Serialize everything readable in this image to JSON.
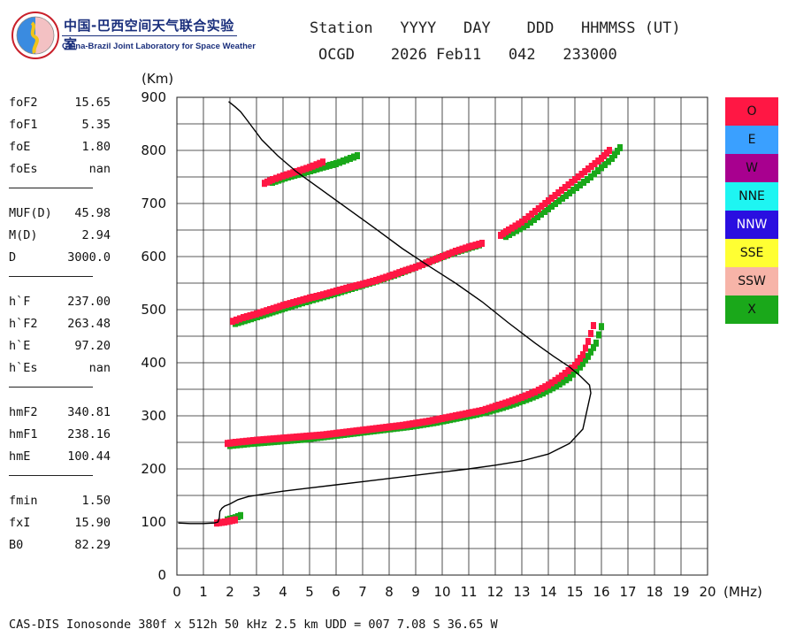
{
  "header": {
    "logo": {
      "cn": "中国-巴西空间天气联合实验室",
      "en": "China-Brazil Joint Laboratory for Space Weather"
    },
    "columns_label": "Station   YYYY   DAY    DDD   HHMMSS (UT)",
    "values_line": "OCGD    2026 Feb11   042   233000"
  },
  "params": [
    {
      "label": "foF2",
      "value": "15.65"
    },
    {
      "label": "foF1",
      "value": "5.35"
    },
    {
      "label": "foE",
      "value": "1.80"
    },
    {
      "label": "foEs",
      "value": "nan"
    },
    {
      "sep": true
    },
    {
      "label": "MUF(D)",
      "value": "45.98"
    },
    {
      "label": "M(D)",
      "value": "2.94"
    },
    {
      "label": "D",
      "value": "3000.0"
    },
    {
      "sep": true
    },
    {
      "label": "h`F",
      "value": "237.00"
    },
    {
      "label": "h`F2",
      "value": "263.48"
    },
    {
      "label": "h`E",
      "value": "97.20"
    },
    {
      "label": "h`Es",
      "value": "nan"
    },
    {
      "sep": true
    },
    {
      "label": "hmF2",
      "value": "340.81"
    },
    {
      "label": "hmF1",
      "value": "238.16"
    },
    {
      "label": "hmE",
      "value": "100.44"
    },
    {
      "sep": true
    },
    {
      "label": "fmin",
      "value": "1.50"
    },
    {
      "label": "fxI",
      "value": "15.90"
    },
    {
      "label": "B0",
      "value": "82.29"
    }
  ],
  "legend": [
    {
      "label": "O",
      "color": "#ff1744"
    },
    {
      "label": "E",
      "color": "#3aa0ff"
    },
    {
      "label": "W",
      "color": "#a8008f"
    },
    {
      "label": "NNE",
      "color": "#1ef5f2"
    },
    {
      "label": "NNW",
      "color": "#2a0fe0"
    },
    {
      "label": "SSE",
      "color": "#ffff33"
    },
    {
      "label": "SSW",
      "color": "#f7b4a8"
    },
    {
      "label": "X",
      "color": "#1aa81a"
    }
  ],
  "footer": "CAS-DIS Ionosonde 380f x 512h 50 kHz 2.5 km UDD = 007 7.08 S 36.65 W",
  "chart_data": {
    "type": "scatter",
    "xlabel": "(MHz)",
    "ylabel": "(Km)",
    "xlim": [
      0,
      20
    ],
    "ylim": [
      0,
      900
    ],
    "xticks": [
      0,
      1,
      2,
      3,
      4,
      5,
      6,
      7,
      8,
      9,
      10,
      11,
      12,
      13,
      14,
      15,
      16,
      17,
      18,
      19,
      20
    ],
    "yticks": [
      0,
      100,
      200,
      300,
      400,
      500,
      600,
      700,
      800,
      900
    ],
    "grid": true,
    "series": [
      {
        "name": "O",
        "color": "#ff1744",
        "traces": [
          {
            "x": [
              1.5,
              1.8,
              2.0,
              2.2
            ],
            "y": [
              98,
              100,
              102,
              104
            ]
          },
          {
            "x": [
              1.9,
              2.2,
              2.6,
              3.0,
              3.5,
              4.0,
              4.5,
              5.0,
              5.5,
              6.0,
              6.5,
              7.0,
              7.5,
              8.0,
              8.5,
              9.0,
              9.5,
              10.0,
              10.5,
              11.0,
              11.5,
              12.0,
              12.5,
              13.0,
              13.5,
              14.0,
              14.5,
              15.0,
              15.3,
              15.5,
              15.7
            ],
            "y": [
              248,
              250,
              252,
              254,
              256,
              258,
              260,
              262,
              264,
              267,
              270,
              273,
              276,
              279,
              282,
              286,
              290,
              295,
              300,
              305,
              310,
              318,
              326,
              335,
              345,
              358,
              375,
              395,
              415,
              440,
              470
            ]
          },
          {
            "x": [
              2.1,
              2.5,
              3.0,
              3.5,
              4.0,
              4.5,
              5.0,
              5.5,
              6.0,
              6.5,
              7.0,
              7.5,
              8.0,
              8.5,
              9.0,
              9.5,
              10.0,
              10.5,
              11.0,
              11.5
            ],
            "y": [
              478,
              485,
              492,
              500,
              508,
              515,
              522,
              528,
              535,
              542,
              548,
              555,
              563,
              572,
              580,
              590,
              600,
              610,
              618,
              625
            ]
          },
          {
            "x": [
              12.2,
              12.5,
              13.0,
              13.5,
              14.0,
              14.5,
              15.0,
              15.5,
              16.0,
              16.3
            ],
            "y": [
              640,
              650,
              665,
              685,
              705,
              725,
              745,
              765,
              785,
              800
            ]
          },
          {
            "x": [
              3.3,
              3.6,
              4.0,
              4.5,
              5.0,
              5.5
            ],
            "y": [
              738,
              745,
              752,
              760,
              768,
              778
            ]
          }
        ]
      },
      {
        "name": "X",
        "color": "#1aa81a",
        "traces": [
          {
            "x": [
              1.9,
              2.2,
              2.4
            ],
            "y": [
              104,
              108,
              112
            ]
          },
          {
            "x": [
              2.0,
              2.4,
              2.8,
              3.3,
              3.8,
              4.3,
              4.8,
              5.3,
              5.8,
              6.3,
              6.8,
              7.3,
              7.8,
              8.3,
              8.8,
              9.3,
              9.8,
              10.3,
              10.8,
              11.3,
              11.8,
              12.3,
              12.8,
              13.3,
              13.8,
              14.3,
              14.8,
              15.2,
              15.5,
              15.8,
              16.0
            ],
            "y": [
              244,
              246,
              248,
              250,
              252,
              254,
              256,
              259,
              262,
              265,
              268,
              271,
              274,
              277,
              280,
              284,
              288,
              293,
              298,
              303,
              309,
              316,
              324,
              333,
              343,
              356,
              372,
              392,
              412,
              437,
              468
            ]
          },
          {
            "x": [
              2.2,
              2.8,
              3.5,
              4.2,
              5.0,
              5.8,
              6.6,
              7.4,
              8.2,
              9.0,
              9.8,
              10.6,
              11.4
            ],
            "y": [
              474,
              483,
              494,
              505,
              517,
              528,
              540,
              552,
              565,
              580,
              596,
              610,
              622
            ]
          },
          {
            "x": [
              12.4,
              13.2,
              14.0,
              14.8,
              15.6,
              16.4,
              16.7
            ],
            "y": [
              638,
              660,
              690,
              720,
              750,
              785,
              805
            ]
          },
          {
            "x": [
              3.6,
              4.2,
              4.8,
              5.4,
              6.0,
              6.8
            ],
            "y": [
              740,
              750,
              758,
              767,
              775,
              790
            ]
          }
        ]
      }
    ],
    "profile": {
      "x": [
        0.05,
        0.5,
        1.0,
        1.4,
        1.55,
        1.6,
        1.62,
        1.7,
        1.8,
        2.0,
        2.3,
        2.7,
        3.2,
        4.0,
        5.0,
        6.0,
        7.0,
        8.0,
        9.0,
        10.0,
        11.0,
        12.0,
        13.0,
        14.0,
        14.8,
        15.3,
        15.6,
        15.55,
        15.2,
        14.8,
        14.2,
        13.5,
        12.5,
        11.5,
        10.5,
        9.5,
        8.5,
        7.5,
        6.5,
        5.5,
        4.5,
        3.8,
        3.2,
        2.9,
        2.6,
        2.4,
        2.2,
        2.05,
        1.95
      ],
      "y": [
        98,
        97,
        97,
        98,
        100,
        108,
        120,
        126,
        130,
        134,
        142,
        148,
        152,
        158,
        164,
        170,
        176,
        182,
        188,
        194,
        200,
        207,
        215,
        228,
        248,
        275,
        343,
        358,
        375,
        392,
        412,
        437,
        475,
        515,
        550,
        582,
        615,
        652,
        688,
        724,
        760,
        790,
        820,
        840,
        860,
        873,
        882,
        888,
        892
      ]
    }
  }
}
